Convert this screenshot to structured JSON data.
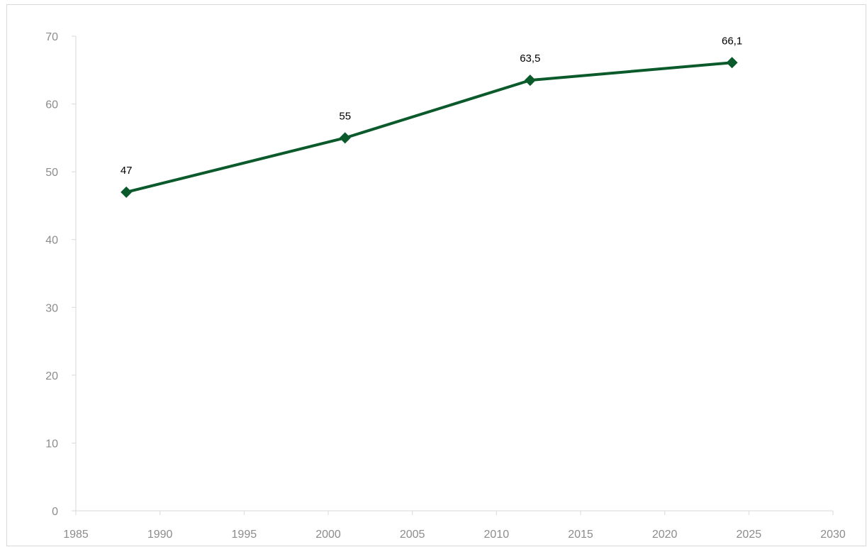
{
  "title_fragment": "",
  "colors": {
    "line": "#0b5a2c",
    "axis": "#d9d9d9",
    "tick_text": "#8c8c8c",
    "label_text": "#000000"
  },
  "chart_data": {
    "type": "line",
    "title": "",
    "xlabel": "",
    "ylabel": "",
    "xlim": [
      1985,
      2030
    ],
    "ylim": [
      0,
      70
    ],
    "x_ticks": [
      1985,
      1990,
      1995,
      2000,
      2005,
      2010,
      2015,
      2020,
      2025,
      2030
    ],
    "y_ticks": [
      0,
      10,
      20,
      30,
      40,
      50,
      60,
      70
    ],
    "grid": false,
    "legend": "none",
    "marker": "diamond",
    "series": [
      {
        "x": [
          1988,
          2001,
          2012,
          2024
        ],
        "y": [
          47,
          55,
          63.5,
          66.1
        ],
        "labels": [
          "47",
          "55",
          "63,5",
          "66,1"
        ]
      }
    ]
  }
}
